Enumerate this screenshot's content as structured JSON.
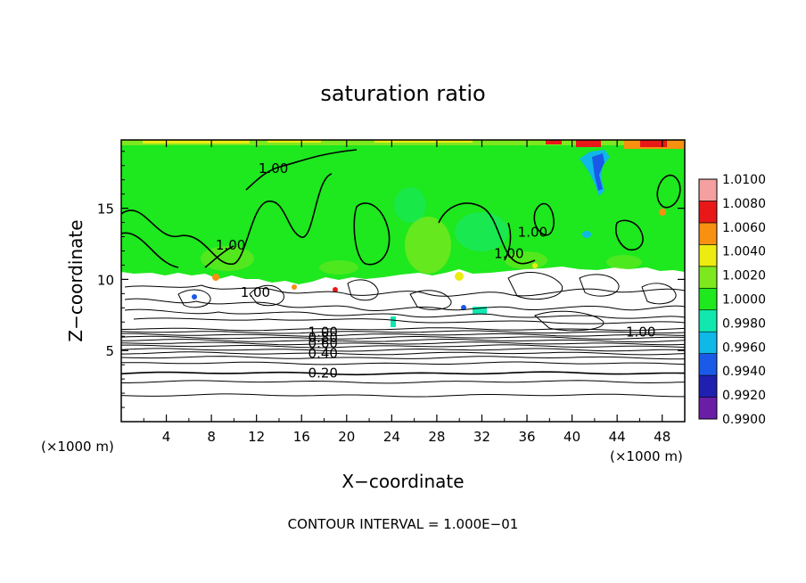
{
  "chart_data": {
    "type": "heatmap",
    "title": "saturation ratio",
    "xlabel": "X−coordinate",
    "ylabel": "Z−coordinate",
    "x_unit_left": "(×1000 m)",
    "x_unit_right": "(×1000 m)",
    "xlim": [
      0,
      50
    ],
    "ylim": [
      0,
      19.8
    ],
    "x_ticks": [
      4,
      8,
      12,
      16,
      20,
      24,
      28,
      32,
      36,
      40,
      44,
      48
    ],
    "y_ticks": [
      5,
      10,
      15
    ],
    "colorbar": {
      "levels": [
        0.99,
        0.992,
        0.994,
        0.996,
        0.998,
        1.0,
        1.002,
        1.004,
        1.006,
        1.008,
        1.01
      ],
      "labels": [
        "0.9900",
        "0.9920",
        "0.9940",
        "0.9960",
        "0.9980",
        "1.0000",
        "1.0020",
        "1.0040",
        "1.0060",
        "1.0080",
        "1.0100"
      ],
      "colors": [
        "#6a1ea8",
        "#2020b0",
        "#1a5ae8",
        "#10b8e8",
        "#10e8b0",
        "#1ee81e",
        "#7ee81e",
        "#ecec10",
        "#f89010",
        "#e81818",
        "#f4a0a0"
      ]
    },
    "contour_labels": [
      {
        "text": "1.00",
        "x": 13.5,
        "z": 17.8
      },
      {
        "text": "1.00",
        "x": 9.7,
        "z": 12.4
      },
      {
        "text": "1.00",
        "x": 36.5,
        "z": 13.3
      },
      {
        "text": "1.00",
        "x": 34.4,
        "z": 11.8
      },
      {
        "text": "1.00",
        "x": 11.9,
        "z": 9.1
      },
      {
        "text": "1.00",
        "x": 46.1,
        "z": 6.3
      },
      {
        "text": "1.00",
        "x": 17.9,
        "z": 6.3
      },
      {
        "text": "0.80",
        "x": 17.9,
        "z": 5.9
      },
      {
        "text": "0.60",
        "x": 17.9,
        "z": 5.5
      },
      {
        "text": "0.40",
        "x": 17.9,
        "z": 4.8
      },
      {
        "text": "0.20",
        "x": 17.9,
        "z": 3.4
      }
    ],
    "cloud_base_z": 10.5,
    "contour_interval_text": "CONTOUR INTERVAL = 1.000E−01"
  }
}
